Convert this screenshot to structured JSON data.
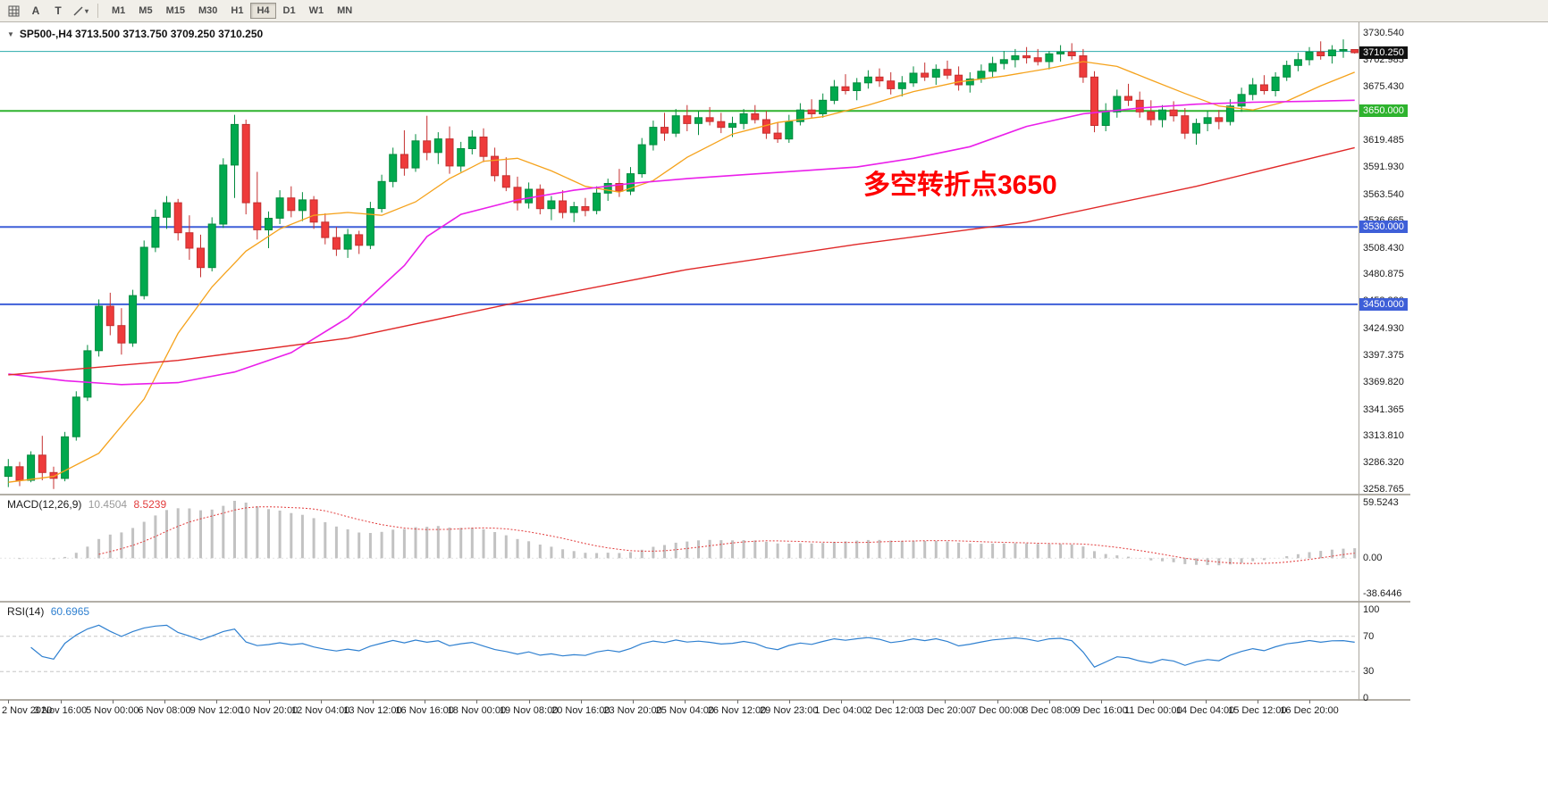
{
  "toolbar": {
    "icons": [
      "chart-grid",
      "cursor-a",
      "text-tool",
      "line-tools"
    ],
    "timeframes": [
      "M1",
      "M5",
      "M15",
      "M30",
      "H1",
      "H4",
      "D1",
      "W1",
      "MN"
    ],
    "active_timeframe": "H4"
  },
  "chart": {
    "symbol_line": "SP500-,H4 3713.500 3713.750 3709.250 3710.250",
    "annotation": "多空转折点3650"
  },
  "chart_data": {
    "type": "candlestick",
    "symbol": "SP500-",
    "timeframe": "H4",
    "ohlc_current": {
      "open": 3713.5,
      "high": 3713.75,
      "low": 3709.25,
      "close": 3710.25
    },
    "colors": {
      "bull": "#00a94e",
      "bull_border": "#028a3d",
      "bear": "#ee3b3b",
      "bear_border": "#c42f2f",
      "background": "#ffffff"
    },
    "price_axis": {
      "min": 3258.765,
      "max": 3730.54,
      "ticks": [
        "3730.540",
        "3702.985",
        "3675.430",
        "3647.875",
        "3619.485",
        "3591.930",
        "3563.540",
        "3536.665",
        "3508.430",
        "3480.875",
        "3453.320",
        "3424.930",
        "3397.375",
        "3369.820",
        "3341.365",
        "3313.810",
        "3286.320",
        "3258.765"
      ]
    },
    "price_tags": [
      {
        "text": "3710.250",
        "price": 3710.25,
        "color": "#111111"
      },
      {
        "text": "3650.000",
        "price": 3650.0,
        "color": "#2eb32e"
      },
      {
        "text": "3530.000",
        "price": 3530.0,
        "color": "#3e5fd8"
      },
      {
        "text": "3450.000",
        "price": 3450.0,
        "color": "#3e5fd8"
      }
    ],
    "horizontal_lines": [
      {
        "name": "bid-price-line",
        "price": 3711.5,
        "color": "#2aabab",
        "width": 1
      },
      {
        "name": "level-line-3650",
        "price": 3650.0,
        "color": "#2eb32e",
        "width": 2
      },
      {
        "name": "level-line-3530",
        "price": 3530.0,
        "color": "#3e5fd8",
        "width": 2
      },
      {
        "name": "level-line-3450",
        "price": 3450.0,
        "color": "#3e5fd8",
        "width": 2
      }
    ],
    "candles": [
      [
        3272,
        3290,
        3261,
        3282
      ],
      [
        3282,
        3287,
        3262,
        3268
      ],
      [
        3268,
        3298,
        3266,
        3294
      ],
      [
        3294,
        3314,
        3268,
        3276
      ],
      [
        3276,
        3282,
        3259,
        3270
      ],
      [
        3270,
        3318,
        3267,
        3313
      ],
      [
        3313,
        3360,
        3309,
        3354
      ],
      [
        3354,
        3408,
        3350,
        3402
      ],
      [
        3402,
        3455,
        3396,
        3448
      ],
      [
        3448,
        3462,
        3418,
        3428
      ],
      [
        3428,
        3446,
        3398,
        3410
      ],
      [
        3410,
        3465,
        3406,
        3459
      ],
      [
        3459,
        3516,
        3455,
        3509
      ],
      [
        3509,
        3548,
        3504,
        3540
      ],
      [
        3540,
        3562,
        3528,
        3555
      ],
      [
        3555,
        3559,
        3516,
        3524
      ],
      [
        3524,
        3542,
        3496,
        3508
      ],
      [
        3508,
        3522,
        3478,
        3488
      ],
      [
        3488,
        3540,
        3484,
        3533
      ],
      [
        3533,
        3601,
        3529,
        3594
      ],
      [
        3594,
        3646,
        3560,
        3636
      ],
      [
        3636,
        3641,
        3543,
        3555
      ],
      [
        3555,
        3587,
        3517,
        3527
      ],
      [
        3527,
        3546,
        3508,
        3539
      ],
      [
        3539,
        3568,
        3533,
        3560
      ],
      [
        3560,
        3572,
        3540,
        3547
      ],
      [
        3547,
        3566,
        3536,
        3558
      ],
      [
        3558,
        3562,
        3528,
        3535
      ],
      [
        3535,
        3544,
        3512,
        3519
      ],
      [
        3519,
        3530,
        3500,
        3507
      ],
      [
        3507,
        3528,
        3498,
        3522
      ],
      [
        3522,
        3526,
        3502,
        3511
      ],
      [
        3511,
        3556,
        3507,
        3549
      ],
      [
        3549,
        3584,
        3545,
        3577
      ],
      [
        3577,
        3612,
        3571,
        3605
      ],
      [
        3605,
        3630,
        3583,
        3591
      ],
      [
        3591,
        3626,
        3587,
        3619
      ],
      [
        3619,
        3645,
        3599,
        3607
      ],
      [
        3607,
        3628,
        3595,
        3621
      ],
      [
        3621,
        3634,
        3585,
        3593
      ],
      [
        3593,
        3618,
        3587,
        3611
      ],
      [
        3611,
        3630,
        3605,
        3623
      ],
      [
        3623,
        3632,
        3597,
        3603
      ],
      [
        3603,
        3612,
        3577,
        3583
      ],
      [
        3583,
        3602,
        3567,
        3571
      ],
      [
        3571,
        3582,
        3547,
        3555
      ],
      [
        3555,
        3576,
        3549,
        3569
      ],
      [
        3569,
        3574,
        3543,
        3549
      ],
      [
        3549,
        3562,
        3537,
        3557
      ],
      [
        3557,
        3568,
        3539,
        3545
      ],
      [
        3545,
        3556,
        3535,
        3551
      ],
      [
        3551,
        3560,
        3541,
        3547
      ],
      [
        3547,
        3572,
        3543,
        3565
      ],
      [
        3565,
        3580,
        3557,
        3575
      ],
      [
        3575,
        3590,
        3561,
        3567
      ],
      [
        3567,
        3592,
        3563,
        3585
      ],
      [
        3585,
        3622,
        3581,
        3615
      ],
      [
        3615,
        3640,
        3609,
        3633
      ],
      [
        3633,
        3648,
        3619,
        3627
      ],
      [
        3627,
        3652,
        3623,
        3645
      ],
      [
        3645,
        3656,
        3629,
        3637
      ],
      [
        3637,
        3650,
        3625,
        3643
      ],
      [
        3643,
        3654,
        3635,
        3639
      ],
      [
        3639,
        3648,
        3627,
        3633
      ],
      [
        3633,
        3644,
        3623,
        3637
      ],
      [
        3637,
        3652,
        3631,
        3647
      ],
      [
        3647,
        3656,
        3637,
        3641
      ],
      [
        3641,
        3650,
        3621,
        3627
      ],
      [
        3627,
        3638,
        3617,
        3621
      ],
      [
        3621,
        3646,
        3617,
        3639
      ],
      [
        3639,
        3658,
        3635,
        3651
      ],
      [
        3651,
        3662,
        3643,
        3647
      ],
      [
        3647,
        3668,
        3643,
        3661
      ],
      [
        3661,
        3682,
        3657,
        3675
      ],
      [
        3675,
        3688,
        3667,
        3671
      ],
      [
        3671,
        3684,
        3661,
        3679
      ],
      [
        3679,
        3692,
        3673,
        3685
      ],
      [
        3685,
        3694,
        3675,
        3681
      ],
      [
        3681,
        3690,
        3667,
        3673
      ],
      [
        3673,
        3686,
        3665,
        3679
      ],
      [
        3679,
        3696,
        3675,
        3689
      ],
      [
        3689,
        3700,
        3681,
        3685
      ],
      [
        3685,
        3698,
        3677,
        3693
      ],
      [
        3693,
        3702,
        3683,
        3687
      ],
      [
        3687,
        3696,
        3671,
        3677
      ],
      [
        3677,
        3690,
        3669,
        3683
      ],
      [
        3683,
        3698,
        3679,
        3691
      ],
      [
        3691,
        3706,
        3685,
        3699
      ],
      [
        3699,
        3712,
        3693,
        3703
      ],
      [
        3703,
        3714,
        3695,
        3707
      ],
      [
        3707,
        3716,
        3699,
        3705
      ],
      [
        3705,
        3714,
        3697,
        3701
      ],
      [
        3701,
        3712,
        3693,
        3709
      ],
      [
        3709,
        3718,
        3701,
        3711
      ],
      [
        3711,
        3720,
        3703,
        3707
      ],
      [
        3707,
        3714,
        3679,
        3685
      ],
      [
        3685,
        3691,
        3628,
        3635
      ],
      [
        3635,
        3658,
        3629,
        3649
      ],
      [
        3649,
        3672,
        3643,
        3665
      ],
      [
        3665,
        3678,
        3655,
        3661
      ],
      [
        3661,
        3670,
        3643,
        3649
      ],
      [
        3649,
        3661,
        3635,
        3641
      ],
      [
        3641,
        3656,
        3633,
        3651
      ],
      [
        3651,
        3660,
        3639,
        3645
      ],
      [
        3645,
        3653,
        3621,
        3627
      ],
      [
        3627,
        3642,
        3615,
        3637
      ],
      [
        3637,
        3650,
        3629,
        3643
      ],
      [
        3643,
        3651,
        3631,
        3639
      ],
      [
        3639,
        3662,
        3635,
        3655
      ],
      [
        3655,
        3674,
        3649,
        3667
      ],
      [
        3667,
        3684,
        3661,
        3677
      ],
      [
        3677,
        3687,
        3667,
        3671
      ],
      [
        3671,
        3690,
        3665,
        3685
      ],
      [
        3685,
        3702,
        3681,
        3697
      ],
      [
        3697,
        3710,
        3691,
        3703
      ],
      [
        3703,
        3716,
        3697,
        3711
      ],
      [
        3711,
        3722,
        3703,
        3707
      ],
      [
        3707,
        3718,
        3699,
        3713
      ],
      [
        3713,
        3724,
        3705,
        3713.5
      ],
      [
        3713.5,
        3713.75,
        3709.25,
        3710.25
      ]
    ],
    "moving_averages": [
      {
        "name": "ma-fast-orange",
        "color": "#f5a21b",
        "width": 1.3,
        "points": [
          [
            0,
            3266
          ],
          [
            4,
            3272
          ],
          [
            8,
            3296
          ],
          [
            12,
            3352
          ],
          [
            15,
            3420
          ],
          [
            18,
            3468
          ],
          [
            21,
            3505
          ],
          [
            24,
            3528
          ],
          [
            27,
            3542
          ],
          [
            30,
            3545
          ],
          [
            33,
            3542
          ],
          [
            36,
            3556
          ],
          [
            39,
            3580
          ],
          [
            42,
            3598
          ],
          [
            45,
            3601
          ],
          [
            48,
            3588
          ],
          [
            51,
            3572
          ],
          [
            54,
            3566
          ],
          [
            57,
            3578
          ],
          [
            60,
            3602
          ],
          [
            64,
            3626
          ],
          [
            68,
            3638
          ],
          [
            72,
            3644
          ],
          [
            76,
            3656
          ],
          [
            80,
            3670
          ],
          [
            84,
            3680
          ],
          [
            88,
            3686
          ],
          [
            92,
            3694
          ],
          [
            95,
            3701
          ],
          [
            98,
            3696
          ],
          [
            101,
            3682
          ],
          [
            104,
            3668
          ],
          [
            107,
            3655
          ],
          [
            110,
            3651
          ],
          [
            113,
            3660
          ],
          [
            116,
            3676
          ],
          [
            119,
            3690
          ]
        ]
      },
      {
        "name": "ma-mid-magenta",
        "color": "#ea1fea",
        "width": 1.6,
        "points": [
          [
            0,
            3378
          ],
          [
            5,
            3371
          ],
          [
            10,
            3367
          ],
          [
            15,
            3369
          ],
          [
            20,
            3380
          ],
          [
            25,
            3400
          ],
          [
            30,
            3436
          ],
          [
            35,
            3490
          ],
          [
            37,
            3520
          ],
          [
            40,
            3543
          ],
          [
            45,
            3558
          ],
          [
            50,
            3568
          ],
          [
            55,
            3575
          ],
          [
            60,
            3580
          ],
          [
            65,
            3584
          ],
          [
            70,
            3588
          ],
          [
            75,
            3592
          ],
          [
            80,
            3601
          ],
          [
            85,
            3613
          ],
          [
            90,
            3634
          ],
          [
            95,
            3647
          ],
          [
            100,
            3653
          ],
          [
            105,
            3657
          ],
          [
            110,
            3659
          ],
          [
            115,
            3660
          ],
          [
            119,
            3661
          ]
        ]
      },
      {
        "name": "ma-slow-red",
        "color": "#e02828",
        "width": 1.4,
        "points": [
          [
            0,
            3377
          ],
          [
            15,
            3392
          ],
          [
            30,
            3415
          ],
          [
            45,
            3452
          ],
          [
            60,
            3486
          ],
          [
            75,
            3512
          ],
          [
            90,
            3535
          ],
          [
            105,
            3572
          ],
          [
            119,
            3612
          ]
        ]
      }
    ],
    "x_labels": [
      "2 Nov 2020",
      "3 Nov 16:00",
      "5 Nov 00:00",
      "6 Nov 08:00",
      "9 Nov 12:00",
      "10 Nov 20:00",
      "12 Nov 04:00",
      "13 Nov 12:00",
      "16 Nov 16:00",
      "18 Nov 00:00",
      "19 Nov 08:00",
      "20 Nov 16:00",
      "23 Nov 20:00",
      "25 Nov 04:00",
      "26 Nov 12:00",
      "29 Nov 23:00",
      "1 Dec 04:00",
      "2 Dec 12:00",
      "3 Dec 20:00",
      "7 Dec 00:00",
      "8 Dec 08:00",
      "9 Dec 16:00",
      "11 Dec 00:00",
      "14 Dec 04:00",
      "15 Dec 12:00",
      "16 Dec 20:00"
    ],
    "indicators": [
      {
        "type": "macd",
        "label": "MACD(12,26,9)",
        "values": [
          "10.4504",
          "8.5239"
        ],
        "params": [
          12,
          26,
          9
        ],
        "axis_ticks": [
          "59.5243",
          "0.00",
          "-38.6446"
        ],
        "axis_max": 59.5243,
        "axis_min": -38.6446,
        "histogram_color": "#c2c2c2",
        "signal_color": "#e23c3c"
      },
      {
        "type": "rsi",
        "label": "RSI(14)",
        "value": "60.6965",
        "period": 14,
        "axis_ticks": [
          "100",
          "70",
          "30",
          "0"
        ],
        "levels": [
          70,
          30
        ],
        "line_color": "#2f80d0"
      }
    ]
  }
}
